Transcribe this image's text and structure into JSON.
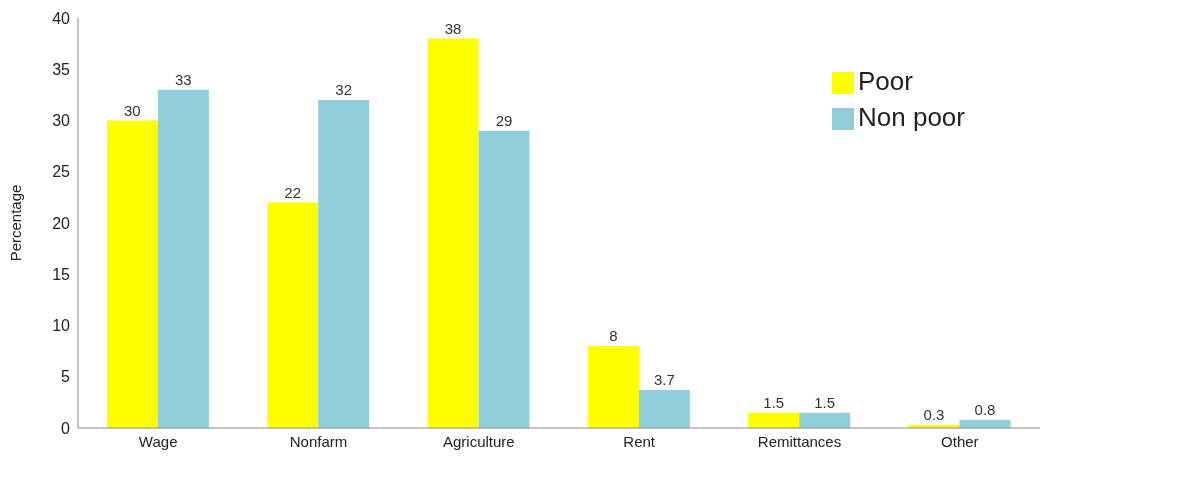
{
  "chart_data": {
    "type": "bar",
    "ylabel": "Percentage",
    "categories": [
      "Wage",
      "Nonfarm",
      "Agriculture",
      "Rent",
      "Remittances",
      "Other"
    ],
    "series": [
      {
        "name": "Poor",
        "color": "#ffff00",
        "values": [
          30,
          22,
          38,
          8,
          1.5,
          0.3
        ]
      },
      {
        "name": "Non poor",
        "color": "#92cddc",
        "values": [
          33,
          32,
          29,
          3.7,
          1.5,
          0.8
        ]
      }
    ],
    "ylim": [
      0,
      40
    ],
    "yticks": [
      0,
      5,
      10,
      15,
      20,
      25,
      30,
      35,
      40
    ],
    "data_labels": true,
    "legend": "top right",
    "grid": false
  }
}
